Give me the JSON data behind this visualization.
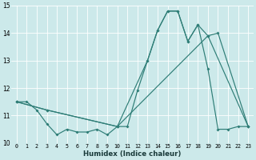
{
  "xlabel": "Humidex (Indice chaleur)",
  "xlim": [
    -0.5,
    23.5
  ],
  "ylim": [
    10,
    15
  ],
  "yticks": [
    10,
    11,
    12,
    13,
    14,
    15
  ],
  "xticks": [
    0,
    1,
    2,
    3,
    4,
    5,
    6,
    7,
    8,
    9,
    10,
    11,
    12,
    13,
    14,
    15,
    16,
    17,
    18,
    19,
    20,
    21,
    22,
    23
  ],
  "bg_color": "#cce9ea",
  "grid_color": "#ffffff",
  "line_color": "#2e7d76",
  "line1_x": [
    0,
    1,
    2,
    3,
    4,
    5,
    6,
    7,
    8,
    9,
    10,
    11,
    12,
    13,
    14,
    15,
    16,
    17,
    18,
    19,
    20,
    21,
    22,
    23
  ],
  "line1_y": [
    11.5,
    11.5,
    11.2,
    10.7,
    10.3,
    10.5,
    10.4,
    10.4,
    10.5,
    10.3,
    10.6,
    10.6,
    11.9,
    13.0,
    14.1,
    14.8,
    14.8,
    13.7,
    14.3,
    12.7,
    10.5,
    10.5,
    10.6,
    10.6
  ],
  "line2_x": [
    0,
    3,
    10,
    13,
    14,
    15,
    16,
    17,
    18,
    19,
    20,
    23
  ],
  "line2_y": [
    11.5,
    11.2,
    10.6,
    13.0,
    14.1,
    14.8,
    14.8,
    13.7,
    14.3,
    13.9,
    14.0,
    10.6
  ],
  "line3_x": [
    0,
    3,
    10,
    19,
    23
  ],
  "line3_y": [
    11.5,
    11.2,
    10.6,
    13.9,
    10.6
  ]
}
